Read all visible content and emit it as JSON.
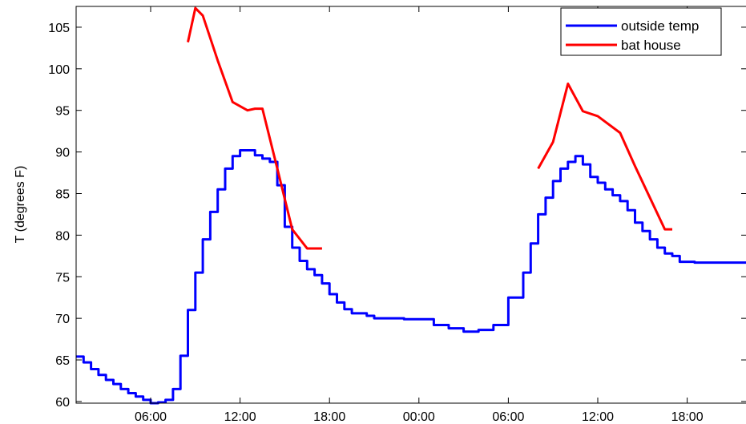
{
  "chart_data": {
    "type": "line",
    "ylabel": "T (degrees F)",
    "xlabel": "",
    "title": "",
    "ylim": [
      59.8,
      107.5
    ],
    "xlim": [
      1,
      46
    ],
    "yticks": [
      60,
      65,
      70,
      75,
      80,
      85,
      90,
      95,
      100,
      105
    ],
    "xticks": [
      {
        "x": 6,
        "label": "06:00"
      },
      {
        "x": 12,
        "label": "12:00"
      },
      {
        "x": 18,
        "label": "18:00"
      },
      {
        "x": 24,
        "label": "00:00"
      },
      {
        "x": 30,
        "label": "06:00"
      },
      {
        "x": 36,
        "label": "12:00"
      },
      {
        "x": 42,
        "label": "18:00"
      }
    ],
    "grid": false,
    "legend_position": "top-right",
    "series": [
      {
        "name": "outside temp",
        "color": "#0000ff",
        "step": true,
        "x": [
          1.0,
          1.5,
          2.0,
          2.5,
          3.0,
          3.5,
          4.0,
          4.5,
          5.0,
          5.5,
          6.0,
          6.5,
          7.0,
          7.5,
          8.0,
          8.5,
          9.0,
          9.5,
          10.0,
          10.5,
          11.0,
          11.5,
          12.0,
          12.5,
          13.0,
          13.5,
          14.0,
          14.5,
          15.0,
          15.5,
          16.0,
          16.5,
          17.0,
          17.5,
          18.0,
          18.5,
          19.0,
          19.5,
          20.0,
          20.5,
          21.0,
          21.5,
          22.0,
          23.0,
          24.0,
          25.0,
          26.0,
          27.0,
          28.0,
          29.0,
          30.0,
          31.0,
          31.5,
          32.0,
          32.5,
          33.0,
          33.5,
          34.0,
          34.5,
          35.0,
          35.5,
          36.0,
          36.5,
          37.0,
          37.5,
          38.0,
          38.5,
          39.0,
          39.5,
          40.0,
          40.5,
          41.0,
          41.5,
          42.0,
          42.5,
          43.0,
          43.5,
          44.0,
          44.5,
          45.0,
          45.5,
          46.0
        ],
        "y": [
          65.4,
          64.7,
          63.9,
          63.2,
          62.6,
          62.1,
          61.5,
          61.0,
          60.6,
          60.2,
          59.8,
          59.9,
          60.2,
          61.5,
          65.5,
          71.0,
          75.5,
          79.5,
          82.8,
          85.5,
          88.0,
          89.5,
          90.2,
          90.2,
          89.6,
          89.2,
          88.8,
          86.0,
          81.0,
          78.5,
          76.9,
          75.9,
          75.2,
          74.2,
          72.9,
          71.9,
          71.1,
          70.6,
          70.6,
          70.3,
          70.0,
          70.0,
          70.0,
          69.9,
          69.9,
          69.2,
          68.8,
          68.4,
          68.6,
          69.2,
          72.5,
          75.5,
          79.0,
          82.5,
          84.5,
          86.5,
          88.0,
          88.8,
          89.5,
          88.5,
          87.0,
          86.3,
          85.5,
          84.8,
          84.1,
          83.0,
          81.5,
          80.5,
          79.5,
          78.5,
          77.8,
          77.5,
          76.8,
          76.8,
          76.7,
          76.7,
          76.7,
          76.7,
          76.7,
          76.7,
          76.7,
          76.7
        ]
      },
      {
        "name": "bat house",
        "color": "#ff0000",
        "segments": [
          {
            "x": [
              8.5,
              9.0,
              9.5,
              10.5,
              11.5,
              12.5,
              13.0,
              13.5,
              14.5,
              15.5,
              16.5,
              17.5
            ],
            "y": [
              103.2,
              107.3,
              106.4,
              101.0,
              96.0,
              95.0,
              95.2,
              95.2,
              88.0,
              80.7,
              78.4,
              78.4
            ]
          },
          {
            "x": [
              32.0,
              33.0,
              34.0,
              35.0,
              36.0,
              37.5,
              38.5,
              39.5,
              40.5,
              41.0
            ],
            "y": [
              88.0,
              91.2,
              98.2,
              94.9,
              94.3,
              92.3,
              88.3,
              84.5,
              80.7,
              80.7
            ]
          }
        ]
      }
    ]
  }
}
